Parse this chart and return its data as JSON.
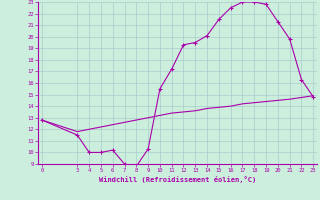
{
  "xlabel": "Windchill (Refroidissement éolien,°C)",
  "bg_color": "#cceedd",
  "line_color": "#aa00aa",
  "grid_color": "#aacccc",
  "hours": [
    0,
    3,
    4,
    5,
    6,
    7,
    8,
    9,
    10,
    11,
    12,
    13,
    14,
    15,
    16,
    17,
    18,
    19,
    20,
    21,
    22,
    23
  ],
  "windchill": [
    12.8,
    11.5,
    10.0,
    10.0,
    10.2,
    9.0,
    8.8,
    10.3,
    15.5,
    17.2,
    19.3,
    19.5,
    20.1,
    21.5,
    22.5,
    23.0,
    23.0,
    22.8,
    21.3,
    19.8,
    16.3,
    14.8
  ],
  "temp": [
    12.8,
    11.8,
    12.0,
    12.2,
    12.4,
    12.6,
    12.8,
    13.0,
    13.2,
    13.4,
    13.5,
    13.6,
    13.8,
    13.9,
    14.0,
    14.2,
    14.3,
    14.4,
    14.5,
    14.6,
    14.75,
    14.9
  ],
  "ylim": [
    9,
    23
  ],
  "xlim": [
    0,
    23
  ],
  "yticks": [
    9,
    10,
    11,
    12,
    13,
    14,
    15,
    16,
    17,
    18,
    19,
    20,
    21,
    22,
    23
  ],
  "xticks": [
    0,
    3,
    4,
    5,
    6,
    7,
    8,
    9,
    10,
    11,
    12,
    13,
    14,
    15,
    16,
    17,
    18,
    19,
    20,
    21,
    22,
    23
  ]
}
